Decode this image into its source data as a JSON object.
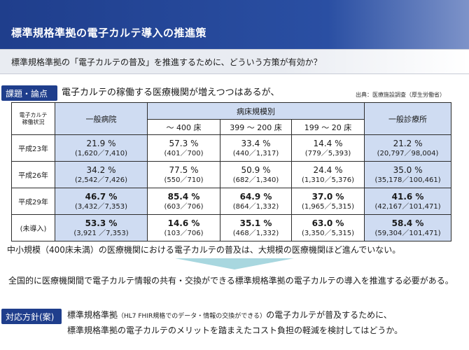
{
  "title": "標準規格準拠の電子カルテ導入の推進策",
  "question": "標準規格準拠の「電子カルテの普及」を推進するために、どういう方策が有効か？",
  "issue": {
    "tag": "課題・論点",
    "text": "電子カルテの稼働する医療機関が増えつつはあるが、",
    "source": "出典：医療施設調査（厚生労働省）"
  },
  "table": {
    "corner_line1": "電子カルテ",
    "corner_line2": "稼働状況",
    "general_hospital": "一般病院",
    "bed_scale": "病床規模別",
    "bed_cols": [
      "～ 400 床",
      "399 ～ 200 床",
      "199 ～ 20 床"
    ],
    "clinic": "一般診療所",
    "rows": [
      {
        "label": "平成23年",
        "cells": [
          {
            "pct": "21.9 %",
            "frac": "(1,620／7,410)"
          },
          {
            "pct": "57.3 %",
            "frac": "(401／700)"
          },
          {
            "pct": "33.4 %",
            "frac": "(440／1,317)"
          },
          {
            "pct": "14.4 %",
            "frac": "(779／5,393)"
          },
          {
            "pct": "21.2 %",
            "frac": "(20,797／98,004)"
          }
        ]
      },
      {
        "label": "平成26年",
        "cells": [
          {
            "pct": "34.2 %",
            "frac": "(2,542／7,426)"
          },
          {
            "pct": "77.5 %",
            "frac": "(550／710)"
          },
          {
            "pct": "50.9 %",
            "frac": "(682／1,340)"
          },
          {
            "pct": "24.4 %",
            "frac": "(1,310／5,376)"
          },
          {
            "pct": "35.0 %",
            "frac": "(35,178／100,461)"
          }
        ]
      },
      {
        "label": "平成29年",
        "cells": [
          {
            "pct": "46.7 %",
            "frac": "(3,432／7,353)"
          },
          {
            "pct": "85.4 %",
            "frac": "(603／706)"
          },
          {
            "pct": "64.9 %",
            "frac": "(864／1,332)"
          },
          {
            "pct": "37.0 %",
            "frac": "(1,965／5,315)"
          },
          {
            "pct": "41.6 %",
            "frac": "(42,167／101,471)"
          }
        ]
      },
      {
        "label": "(未導入)",
        "cells": [
          {
            "pct": "53.3 %",
            "frac": "(3,921 ／7,353)"
          },
          {
            "pct": "14.6 %",
            "frac": "(103／706)"
          },
          {
            "pct": "35.1 %",
            "frac": "(468／1,332)"
          },
          {
            "pct": "63.0 %",
            "frac": "(3,350／5,315)"
          },
          {
            "pct": "58.4 %",
            "frac": "(59,304／101,471)"
          }
        ]
      }
    ]
  },
  "summary": "中小規模（400床未満）の医療機関における電子カルテの普及は、大規模の医療機関ほど進んでいない。",
  "conclusion": "全国的に医療機関間で電子カルテ情報の共有・交換ができる標準規格準拠の電子カルテの導入を推進する必要がある。",
  "policy": {
    "tag": "対応方針(案)",
    "line1_a": "標準規格準拠",
    "line1_small": "（HL7 FHIR規格でのデータ・情報の交換ができる）",
    "line1_b": "の電子カルテが普及するために、",
    "line2": "標準規格準拠の電子カルテのメリットを踏まえたコスト負担の軽減を検討してはどうか。"
  }
}
